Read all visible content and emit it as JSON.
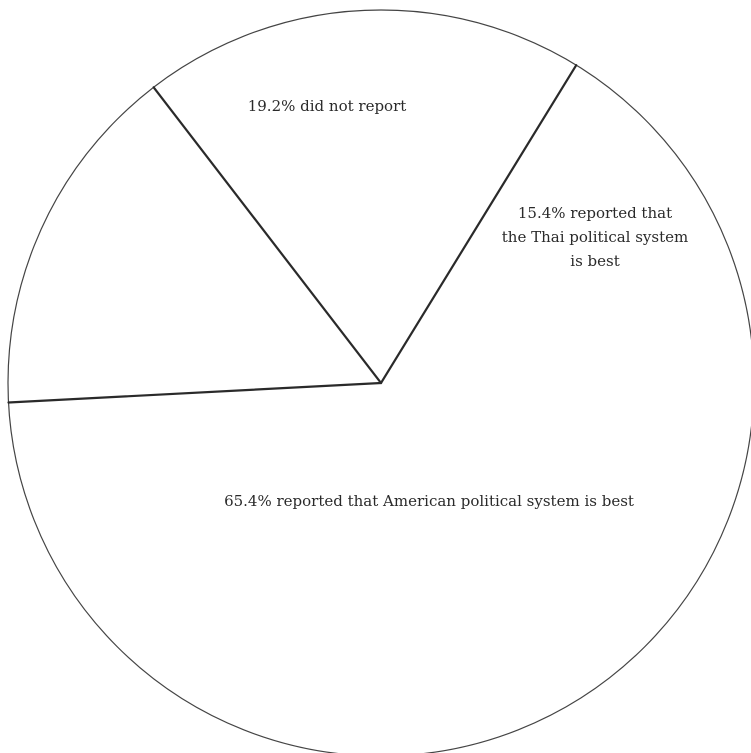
{
  "chart_data": {
    "type": "pie",
    "title": "",
    "slices": [
      {
        "value": 65.4,
        "label_lines": [
          "65.4% reported that American political system is best"
        ]
      },
      {
        "value": 19.2,
        "label_lines": [
          "19.2% did not report"
        ]
      },
      {
        "value": 15.4,
        "label_lines": [
          "15.4% reported that",
          "the Thai political system",
          "is best"
        ]
      }
    ],
    "colors": {
      "fill": "#ffffff",
      "outline": "#444444",
      "boundary": "#2a2a2a",
      "text": "#2a2a2a"
    }
  }
}
